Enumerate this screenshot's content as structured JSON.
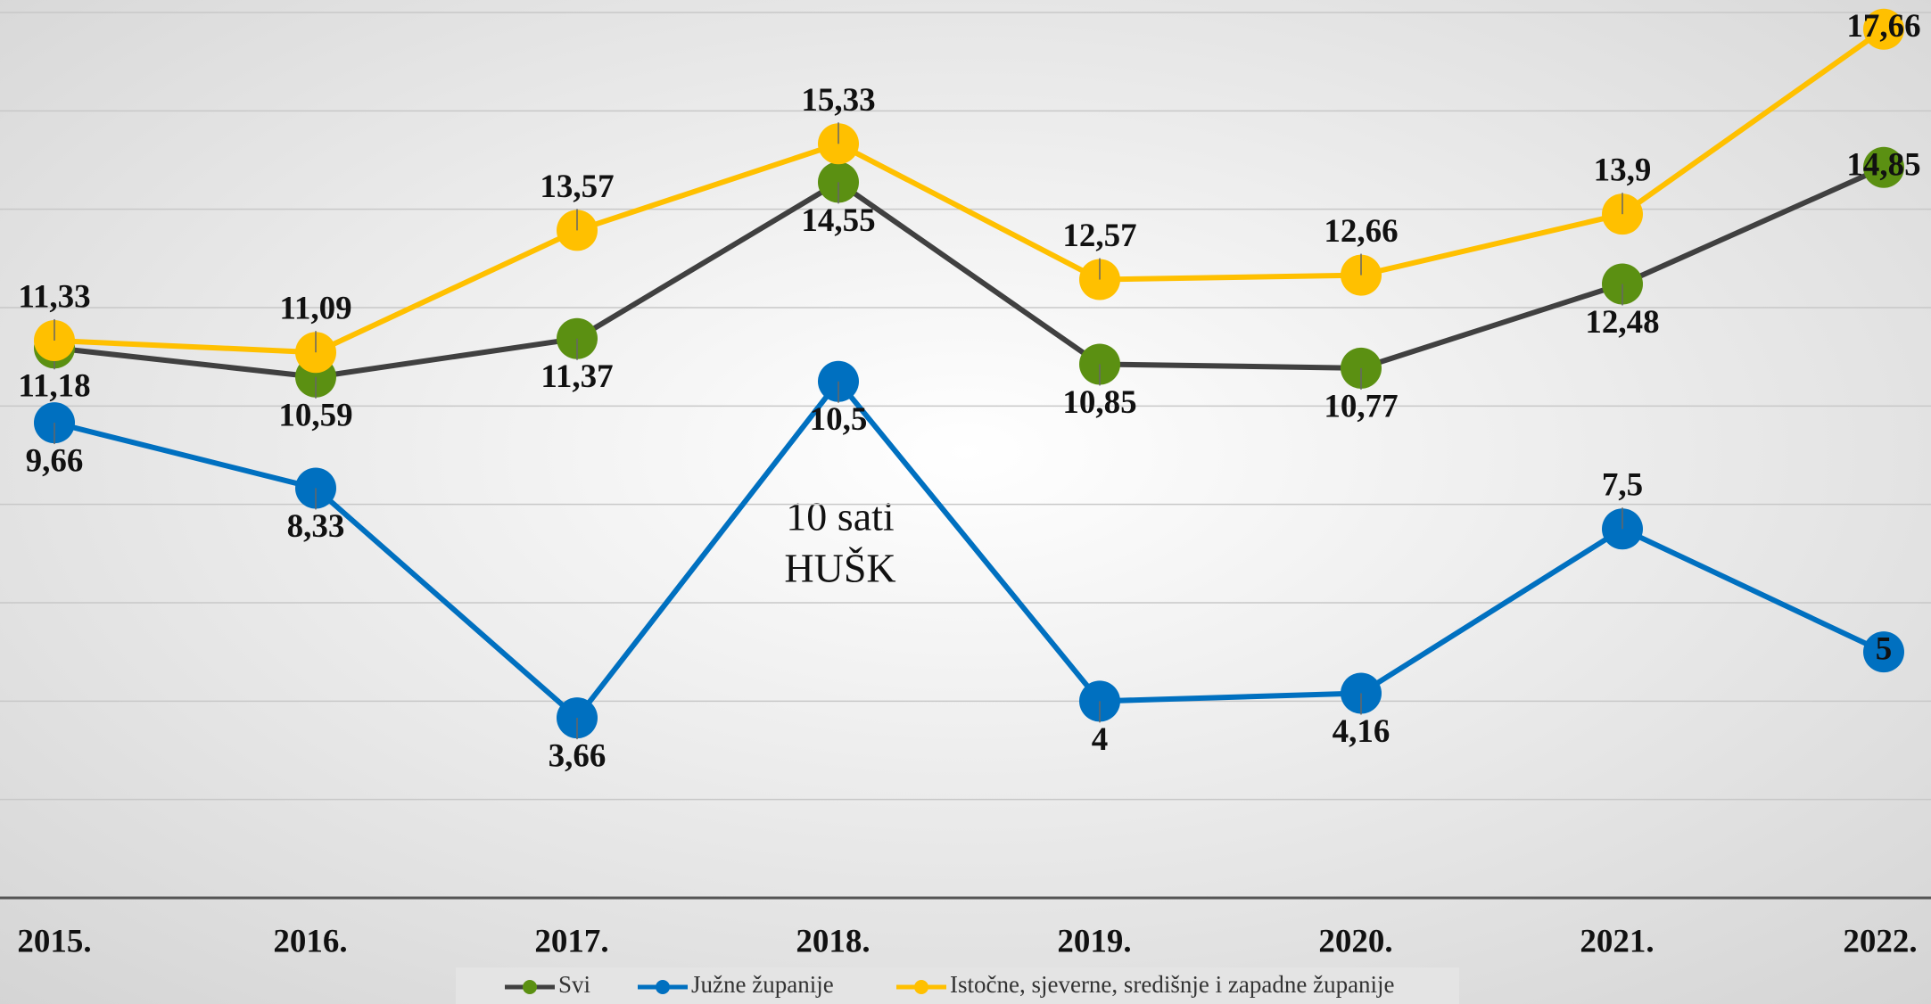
{
  "chart_data": {
    "type": "line",
    "categories": [
      "2015.",
      "2016.",
      "2017.",
      "2018.",
      "2019.",
      "2020.",
      "2021.",
      "2022."
    ],
    "series": [
      {
        "name": "Svi",
        "color": "#404040",
        "marker_color": "#5b9012",
        "values": [
          11.18,
          10.59,
          11.37,
          14.55,
          10.85,
          10.77,
          12.48,
          14.85
        ]
      },
      {
        "name": "Južne županije",
        "color": "#0070c0",
        "marker_color": "#0070c0",
        "values": [
          9.66,
          8.33,
          3.66,
          10.5,
          4,
          4.16,
          7.5,
          5
        ]
      },
      {
        "name": "Istočne, sjeverne, središnje i zapadne županije",
        "color": "#ffc000",
        "marker_color": "#ffc000",
        "values": [
          11.33,
          11.09,
          13.57,
          15.33,
          12.57,
          12.66,
          13.9,
          17.66
        ]
      }
    ],
    "value_labels": [
      [
        "11,18",
        "10,59",
        "11,37",
        "14,55",
        "10,85",
        "10,77",
        "12,48",
        "14,85"
      ],
      [
        "9,66",
        "8,33",
        "3,66",
        "10,5",
        "4",
        "4,16",
        "7,5",
        "5"
      ],
      [
        "11,33",
        "11,09",
        "13,57",
        "15,33",
        "12,57",
        "12,66",
        "13,9",
        "17,66"
      ]
    ],
    "annotations": [
      "10 sati",
      "HUŠK"
    ],
    "ylim": [
      0,
      18
    ],
    "yticks": [
      0,
      2,
      4,
      6,
      8,
      10,
      12,
      14,
      16,
      18
    ],
    "grid": true
  }
}
